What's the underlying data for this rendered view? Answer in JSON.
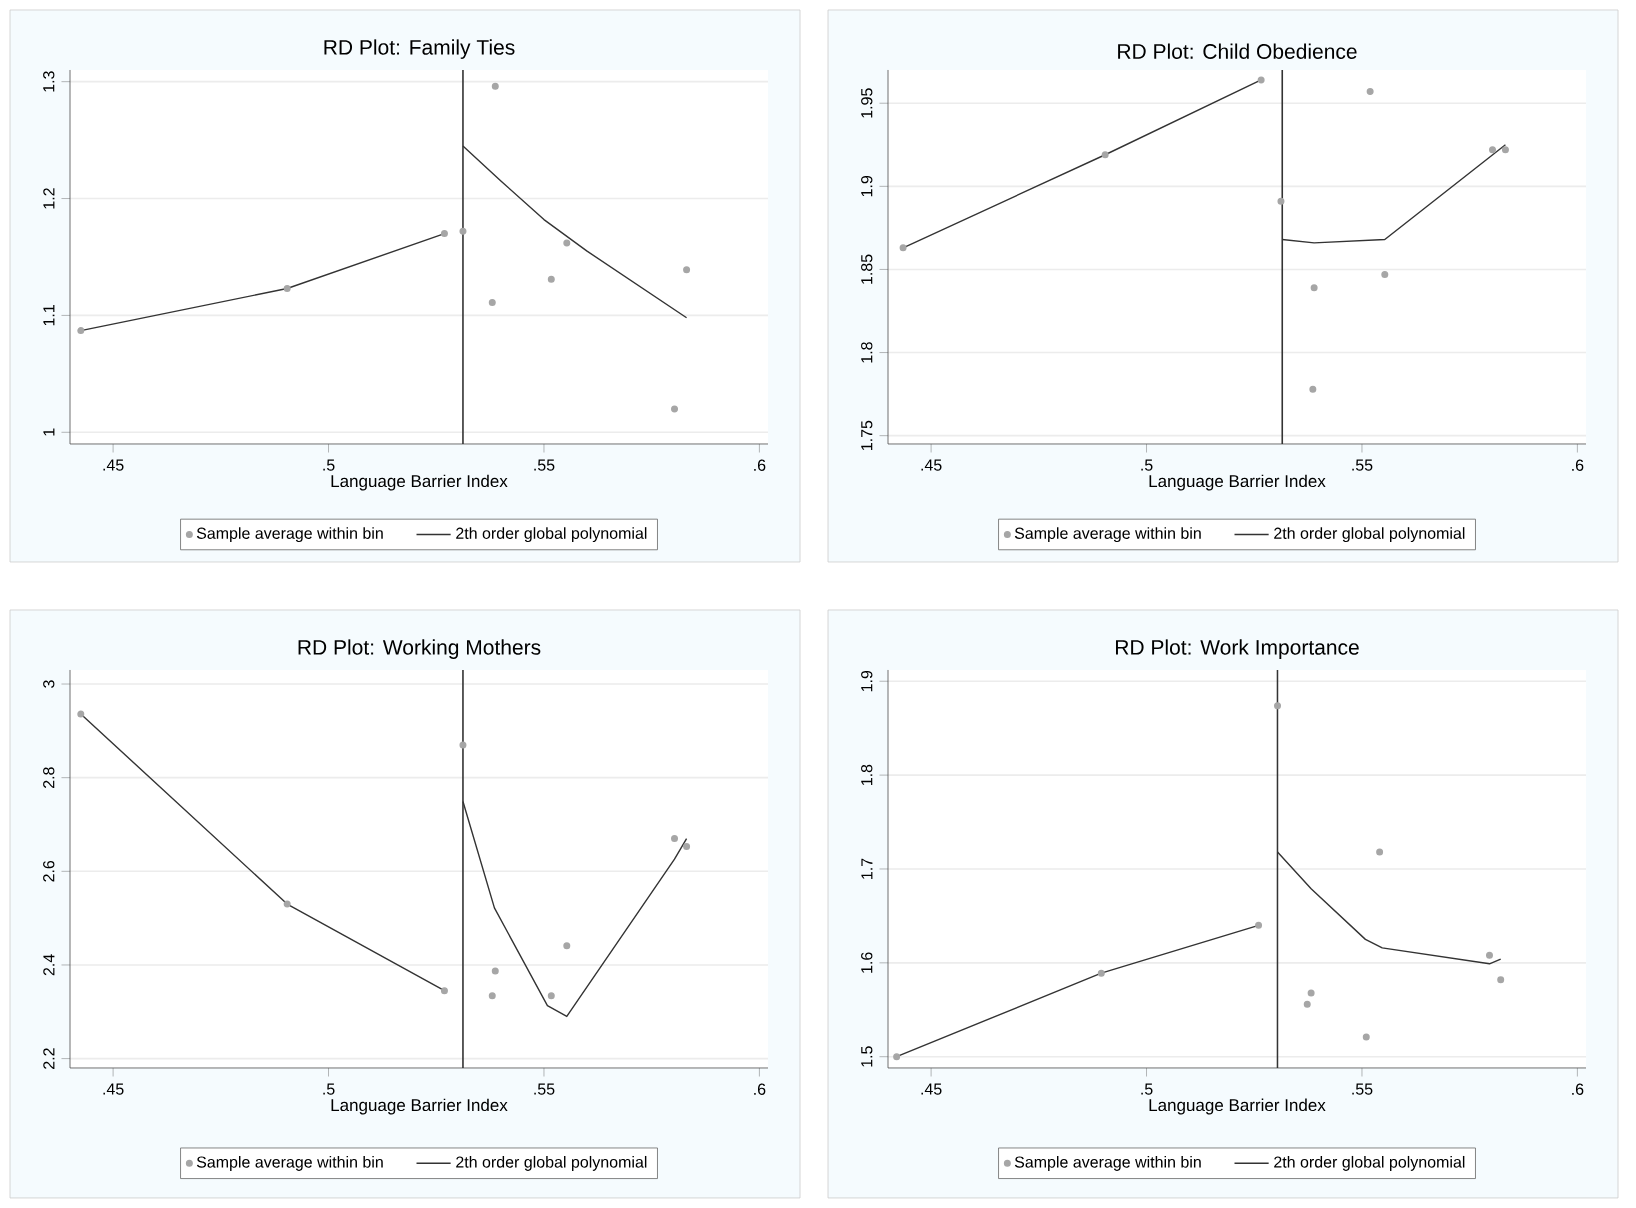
{
  "chart_data": [
    {
      "type": "scatter",
      "title": "RD Plot: Family Ties",
      "xlabel": "Language Barrier Index",
      "xlim": [
        0.44,
        0.602
      ],
      "ylim": [
        0.99,
        1.31
      ],
      "xticks": [
        {
          "value": 0.45,
          "label": ".45"
        },
        {
          "value": 0.5,
          "label": ".5"
        },
        {
          "value": 0.55,
          "label": ".55"
        },
        {
          "value": 0.6,
          "label": ".6"
        }
      ],
      "yticks": [
        1,
        1.1,
        1.2,
        1.3
      ],
      "grid": "y",
      "legend": "bottom",
      "ref_lines": [
        {
          "axis": "x",
          "value": 0.5312,
          "color": "#333333"
        }
      ],
      "series": [
        {
          "name": "Sample average within bin",
          "type": "scatter",
          "marker": "circle",
          "color": "#a6a6a6",
          "x": [
            0.4425,
            0.4904,
            0.5269,
            0.5312,
            0.5387,
            0.538,
            0.5517,
            0.5553,
            0.5803,
            0.5831
          ],
          "values": [
            1.087,
            1.123,
            1.17,
            1.172,
            1.296,
            1.111,
            1.131,
            1.162,
            1.02,
            1.139
          ]
        },
        {
          "name": "2th order global polynomial",
          "type": "line",
          "marker": "none",
          "line_style": "solid",
          "color": "#333333",
          "x": [
            0.4425,
            0.4904,
            0.5269,
            0.53,
            0.5312,
            0.54,
            0.55,
            0.56,
            0.5831
          ],
          "values": [
            1.087,
            1.123,
            1.17,
            null,
            1.245,
            1.215,
            1.182,
            1.155,
            1.098
          ]
        }
      ]
    },
    {
      "type": "scatter",
      "title": "RD Plot: Child Obedience",
      "xlabel": "Language Barrier Index",
      "xlim": [
        0.44,
        0.602
      ],
      "ylim": [
        1.745,
        1.97
      ],
      "xticks": [
        {
          "value": 0.45,
          "label": ".45"
        },
        {
          "value": 0.5,
          "label": ".5"
        },
        {
          "value": 0.55,
          "label": ".55"
        },
        {
          "value": 0.6,
          "label": ".6"
        }
      ],
      "yticks": [
        1.75,
        1.8,
        1.85,
        1.9,
        1.95
      ],
      "grid": "y",
      "legend": "bottom",
      "ref_lines": [
        {
          "axis": "x",
          "value": 0.5315,
          "color": "#333333"
        }
      ],
      "series": [
        {
          "name": "Sample average within bin",
          "type": "scatter",
          "marker": "circle",
          "color": "#a6a6a6",
          "x": [
            0.4435,
            0.4904,
            0.5266,
            0.5312,
            0.5519,
            0.5389,
            0.5386,
            0.5553,
            0.5803,
            0.5833
          ],
          "values": [
            1.863,
            1.919,
            1.964,
            1.891,
            1.957,
            1.839,
            1.778,
            1.847,
            1.922,
            1.922
          ]
        },
        {
          "name": "2th order global polynomial",
          "type": "line",
          "marker": "none",
          "line_style": "solid",
          "color": "#333333",
          "x": [
            0.4435,
            0.4904,
            0.5266,
            0.53,
            0.5315,
            0.5389,
            0.5553,
            0.5833
          ],
          "values": [
            1.863,
            1.919,
            1.964,
            null,
            1.868,
            1.866,
            1.868,
            1.925
          ]
        }
      ]
    },
    {
      "type": "scatter",
      "title": "RD Plot: Working Mothers",
      "xlabel": "Language Barrier Index",
      "xlim": [
        0.44,
        0.602
      ],
      "ylim": [
        2.18,
        3.03
      ],
      "xticks": [
        {
          "value": 0.45,
          "label": ".45"
        },
        {
          "value": 0.5,
          "label": ".5"
        },
        {
          "value": 0.55,
          "label": ".55"
        },
        {
          "value": 0.6,
          "label": ".6"
        }
      ],
      "yticks": [
        2.2,
        2.4,
        2.6,
        2.8,
        3
      ],
      "grid": "y",
      "legend": "bottom",
      "ref_lines": [
        {
          "axis": "x",
          "value": 0.5312,
          "color": "#333333"
        }
      ],
      "series": [
        {
          "name": "Sample average within bin",
          "type": "scatter",
          "marker": "circle",
          "color": "#a6a6a6",
          "x": [
            0.4425,
            0.4904,
            0.5269,
            0.5312,
            0.5387,
            0.538,
            0.5517,
            0.5553,
            0.5803,
            0.5831
          ],
          "values": [
            2.936,
            2.53,
            2.345,
            2.87,
            2.387,
            2.334,
            2.334,
            2.441,
            2.67,
            2.653
          ]
        },
        {
          "name": "2th order global polynomial",
          "type": "line",
          "marker": "none",
          "line_style": "solid",
          "color": "#333333",
          "x": [
            0.4425,
            0.4904,
            0.5269,
            0.53,
            0.5312,
            0.5385,
            0.5508,
            0.5553,
            0.5803,
            0.5831
          ],
          "values": [
            2.936,
            2.53,
            2.345,
            null,
            2.749,
            2.522,
            2.313,
            2.29,
            2.626,
            2.67
          ]
        }
      ]
    },
    {
      "type": "scatter",
      "title": "RD Plot: Work Importance",
      "xlabel": "Language Barrier Index",
      "xlim": [
        0.44,
        0.602
      ],
      "ylim": [
        1.488,
        1.912
      ],
      "xticks": [
        {
          "value": 0.45,
          "label": ".45"
        },
        {
          "value": 0.5,
          "label": ".5"
        },
        {
          "value": 0.55,
          "label": ".55"
        },
        {
          "value": 0.6,
          "label": ".6"
        }
      ],
      "yticks": [
        1.5,
        1.6,
        1.7,
        1.8,
        1.9
      ],
      "grid": "y",
      "legend": "bottom",
      "ref_lines": [
        {
          "axis": "x",
          "value": 0.5304,
          "color": "#333333"
        }
      ],
      "series": [
        {
          "name": "Sample average within bin",
          "type": "scatter",
          "marker": "circle",
          "color": "#a6a6a6",
          "x": [
            0.442,
            0.4895,
            0.526,
            0.5304,
            0.5541,
            0.5382,
            0.5373,
            0.551,
            0.5796,
            0.5822
          ],
          "values": [
            1.5,
            1.589,
            1.64,
            1.874,
            1.718,
            1.568,
            1.556,
            1.521,
            1.608,
            1.582
          ]
        },
        {
          "name": "2th order global polynomial",
          "type": "line",
          "marker": "none",
          "line_style": "solid",
          "color": "#333333",
          "x": [
            0.442,
            0.4895,
            0.526,
            0.529,
            0.5304,
            0.5382,
            0.5508,
            0.5547,
            0.5796,
            0.5822
          ],
          "values": [
            1.5,
            1.589,
            1.64,
            null,
            1.718,
            1.679,
            1.625,
            1.616,
            1.599,
            1.604
          ]
        }
      ]
    }
  ]
}
